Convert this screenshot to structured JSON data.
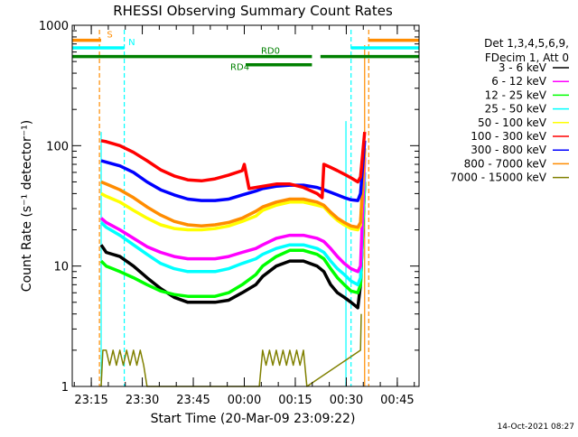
{
  "chart_data": {
    "type": "line",
    "title": "RHESSI Observing Summary Count Rates",
    "xlabel": "Start Time (20-Mar-09 23:09:22)",
    "ylabel": "Count Rate (s⁻¹ detector⁻¹)",
    "y_scale": "log",
    "ylim": [
      1,
      1000
    ],
    "xlim": [
      0,
      102
    ],
    "x_unit": "minutes since 23:09:22",
    "x_ticks": [
      {
        "label": "23:15",
        "value": 5.6
      },
      {
        "label": "23:30",
        "value": 20.6
      },
      {
        "label": "23:45",
        "value": 35.6
      },
      {
        "label": "00:00",
        "value": 50.6
      },
      {
        "label": "00:15",
        "value": 65.6
      },
      {
        "label": "00:30",
        "value": 80.6
      },
      {
        "label": "00:45",
        "value": 95.6
      }
    ],
    "y_ticks": [
      {
        "label": "1",
        "value": 1
      },
      {
        "label": "10",
        "value": 10
      },
      {
        "label": "100",
        "value": 100
      },
      {
        "label": "1000",
        "value": 1000
      }
    ],
    "legend_position": "right",
    "legend_header": [
      "Det 1,3,4,5,6,9,",
      "FDecim 1, Att 0"
    ],
    "series": [
      {
        "name": "3 - 6 keV",
        "color": "#000000",
        "x": [
          8.5,
          10,
          14,
          18,
          22,
          26,
          30,
          34,
          38,
          42,
          46,
          50,
          54,
          56,
          60,
          64,
          68,
          72,
          74,
          76,
          78,
          80,
          82,
          84,
          84.8,
          86
        ],
        "y": [
          15,
          13,
          12,
          10,
          8,
          6.5,
          5.5,
          5,
          5,
          5,
          5.2,
          6,
          7,
          8.2,
          10,
          11,
          11,
          10,
          9,
          7,
          6,
          5.5,
          5,
          4.5,
          7,
          50
        ]
      },
      {
        "name": "6 - 12 keV",
        "color": "#ff00ff",
        "x": [
          8.5,
          10,
          14,
          18,
          22,
          26,
          30,
          34,
          38,
          42,
          46,
          50,
          54,
          56,
          60,
          64,
          68,
          72,
          74,
          76,
          78,
          80,
          82,
          84,
          84.8,
          86
        ],
        "y": [
          25,
          23,
          20,
          17,
          14.5,
          13,
          12,
          11.5,
          11.5,
          11.5,
          12,
          13,
          14,
          15,
          17,
          18,
          18,
          17,
          16,
          14,
          12,
          10.5,
          9.5,
          9,
          10,
          80
        ]
      },
      {
        "name": "12 - 25 keV",
        "color": "#00ff00",
        "x": [
          8.5,
          10,
          14,
          18,
          22,
          26,
          30,
          34,
          38,
          42,
          46,
          50,
          54,
          56,
          60,
          64,
          68,
          72,
          74,
          76,
          78,
          80,
          82,
          84,
          84.8,
          86
        ],
        "y": [
          11,
          10,
          9,
          8,
          7,
          6.2,
          5.8,
          5.6,
          5.6,
          5.6,
          6,
          7,
          8.5,
          10,
          12,
          13.5,
          13.5,
          12.5,
          11.5,
          9.5,
          8,
          7,
          6.2,
          6,
          7,
          50
        ]
      },
      {
        "name": "25 - 50 keV",
        "color": "#00ffff",
        "x": [
          8.5,
          10,
          14,
          18,
          22,
          26,
          30,
          34,
          38,
          42,
          46,
          50,
          54,
          56,
          60,
          64,
          68,
          72,
          74,
          76,
          78,
          80,
          82,
          84,
          84.8,
          86
        ],
        "y": [
          23,
          21,
          18,
          15,
          12.5,
          10.5,
          9.5,
          9,
          9,
          9,
          9.5,
          10.5,
          11.5,
          12.5,
          14,
          15,
          15,
          14,
          13,
          11,
          9.5,
          8.5,
          7.5,
          7,
          8,
          60
        ]
      },
      {
        "name": "50 - 100 keV",
        "color": "#ffff00",
        "x": [
          8.5,
          10,
          14,
          18,
          22,
          26,
          30,
          34,
          38,
          42,
          46,
          50,
          54,
          56,
          60,
          64,
          68,
          72,
          74,
          76,
          78,
          80,
          82,
          84,
          84.8,
          86
        ],
        "y": [
          40,
          38,
          34,
          29,
          25,
          22,
          20.5,
          20,
          20,
          20.5,
          21.5,
          23.5,
          26,
          29,
          32,
          34,
          34,
          32,
          31,
          27,
          24,
          22,
          20.5,
          20,
          22,
          90
        ]
      },
      {
        "name": "100 - 300 keV",
        "color": "#ff0000",
        "x": [
          8.5,
          10,
          14,
          18,
          22,
          26,
          30,
          34,
          38,
          42,
          46,
          50,
          50.6,
          52,
          56,
          60,
          64,
          68,
          72,
          73.5,
          74,
          76,
          78,
          80,
          82,
          84,
          84.8,
          86
        ],
        "y": [
          110,
          108,
          100,
          88,
          75,
          63,
          56,
          52,
          51,
          53,
          57,
          62,
          70,
          44,
          46,
          48,
          48,
          45,
          40,
          37,
          70,
          66,
          62,
          58,
          54,
          50,
          55,
          130
        ]
      },
      {
        "name": "300 - 800 keV",
        "color": "#0000ff",
        "x": [
          8.5,
          10,
          14,
          18,
          22,
          26,
          30,
          34,
          38,
          42,
          46,
          50,
          54,
          56,
          60,
          64,
          68,
          72,
          74,
          76,
          78,
          80,
          82,
          84,
          84.8,
          86
        ],
        "y": [
          75,
          73,
          68,
          60,
          50,
          43,
          39,
          36,
          35,
          35,
          36,
          39,
          42,
          44,
          46,
          47,
          47,
          45,
          43,
          41,
          39,
          37,
          35.5,
          35,
          40,
          110
        ]
      },
      {
        "name": "800 - 7000 keV",
        "color": "#ff8c00",
        "x": [
          8.5,
          10,
          14,
          18,
          22,
          26,
          30,
          34,
          38,
          42,
          46,
          50,
          54,
          56,
          60,
          64,
          68,
          72,
          74,
          76,
          78,
          80,
          82,
          84,
          84.8,
          86
        ],
        "y": [
          50,
          48,
          43,
          37,
          31,
          26.5,
          23.5,
          22,
          21.5,
          22,
          23,
          25,
          28.5,
          31,
          34,
          36,
          36,
          34,
          32,
          28,
          25,
          23,
          21.5,
          21,
          23,
          95
        ]
      },
      {
        "name": "7000 - 15000 keV",
        "color": "#808000",
        "x": [
          8.5,
          9,
          10,
          11,
          12,
          13,
          14,
          15,
          16,
          17,
          18,
          19,
          20,
          21,
          22,
          55,
          56,
          57,
          58,
          59,
          60,
          61,
          62,
          63,
          64,
          65,
          66,
          67,
          68,
          69,
          84.8,
          85
        ],
        "y": [
          1,
          2,
          2,
          1.5,
          2,
          1.5,
          2,
          1.5,
          2,
          1.5,
          2,
          1.5,
          2,
          1.5,
          1,
          1,
          2,
          1.5,
          2,
          1.5,
          2,
          1.5,
          2,
          1.5,
          2,
          1.5,
          2,
          1.5,
          2,
          1,
          2,
          4
        ]
      }
    ],
    "flags": [
      {
        "label": "S",
        "color": "#ff8c00",
        "y": 750,
        "segments": [
          [
            0,
            8.5
          ],
          [
            87,
            102
          ]
        ],
        "label_x": 10.2,
        "bounds": [
          8.0,
          87.2
        ]
      },
      {
        "label": "N",
        "color": "#00ffff",
        "y": 650,
        "segments": [
          [
            0,
            15.3
          ],
          [
            82,
            102
          ]
        ],
        "label_x": 16.5,
        "bounds": [
          15.3,
          82.0
        ]
      },
      {
        "label": "RD0",
        "color": "#008000",
        "y": 550,
        "segments": [
          [
            0,
            70.5
          ],
          [
            73,
            102
          ]
        ],
        "label_x": 55.5
      },
      {
        "label": "RD4",
        "color": "#008000",
        "y": 470,
        "segments": [
          [
            51,
            70.5
          ]
        ],
        "label_x": 46.5
      }
    ]
  },
  "timestamp": "14-Oct-2021 08:27"
}
